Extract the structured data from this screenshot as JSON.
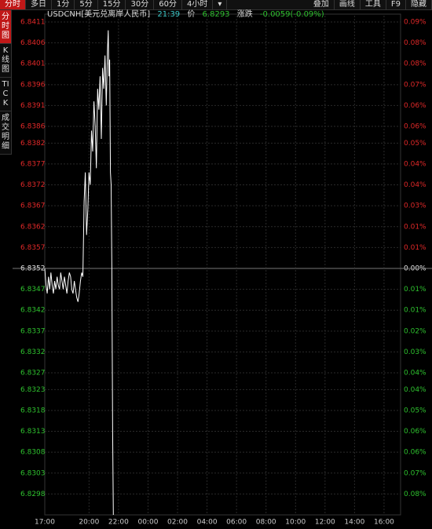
{
  "toolbar": {
    "left": [
      "分时",
      "多日",
      "1分",
      "5分",
      "15分",
      "30分",
      "60分",
      "4小时",
      "▾"
    ],
    "right": [
      "叠加",
      "画线",
      "工具",
      "F9",
      "隐藏"
    ]
  },
  "tabs": [
    "分时图",
    "K线图",
    "TICK",
    "成交明细"
  ],
  "header": {
    "symbol": "USDCNH[美元兑离岸人民币]",
    "time": "21:39",
    "price_label": "价",
    "price": 6.8293,
    "change_label": "涨跌",
    "change": "-0.0059(-0.09%)"
  },
  "chart_data": {
    "type": "line",
    "reference": 6.8352,
    "ylim": [
      6.8293,
      6.84125
    ],
    "yticks": [
      6.8411,
      6.8406,
      6.8401,
      6.8396,
      6.8391,
      6.8386,
      6.8382,
      6.8377,
      6.8372,
      6.8367,
      6.8362,
      6.8357,
      6.8352,
      6.8347,
      6.8342,
      6.8337,
      6.8332,
      6.8327,
      6.8323,
      6.8318,
      6.8313,
      6.8308,
      6.8303,
      6.8298
    ],
    "right_labels": [
      "0.09%",
      "0.08%",
      "0.08%",
      "0.07%",
      "0.06%",
      "0.06%",
      "0.05%",
      "0.04%",
      "0.04%",
      "0.03%",
      "0.01%",
      "0.01%",
      "0.00%",
      "0.01%",
      "0.01%",
      "0.02%",
      "0.03%",
      "0.04%",
      "0.04%",
      "0.05%",
      "0.06%",
      "0.06%",
      "0.07%",
      "0.08%"
    ],
    "xticks": [
      "17:00",
      "20:00",
      "22:00",
      "00:00",
      "02:00",
      "04:00",
      "06:00",
      "08:00",
      "10:00",
      "12:00",
      "14:00",
      "16:00"
    ],
    "grid": true,
    "color": "#ffffff",
    "x": [
      "17:00",
      "17:05",
      "17:10",
      "17:15",
      "17:20",
      "17:25",
      "17:30",
      "17:35",
      "17:40",
      "17:45",
      "17:50",
      "17:55",
      "18:00",
      "18:05",
      "18:10",
      "18:15",
      "18:20",
      "18:25",
      "18:30",
      "18:35",
      "18:40",
      "18:45",
      "18:50",
      "18:55",
      "19:00",
      "19:05",
      "19:10",
      "19:15",
      "19:20",
      "19:25",
      "19:30",
      "19:35",
      "19:40",
      "19:45",
      "19:50",
      "19:55",
      "20:00",
      "20:05",
      "20:10",
      "20:15",
      "20:20",
      "20:25",
      "20:30",
      "20:35",
      "20:40",
      "20:45",
      "20:50",
      "20:55",
      "21:00",
      "21:05",
      "21:10",
      "21:15",
      "21:18",
      "21:21",
      "21:24",
      "21:27",
      "21:30",
      "21:33",
      "21:36",
      "21:39"
    ],
    "values": [
      6.8352,
      6.8348,
      6.8346,
      6.835,
      6.8347,
      6.8351,
      6.8348,
      6.8346,
      6.8349,
      6.8347,
      6.835,
      6.8348,
      6.8347,
      6.8351,
      6.8349,
      6.8347,
      6.835,
      6.8348,
      6.8346,
      6.8349,
      6.8351,
      6.835,
      6.8347,
      6.8346,
      6.8349,
      6.8347,
      6.8345,
      6.8344,
      6.8346,
      6.8349,
      6.8351,
      6.835,
      6.8368,
      6.8375,
      6.836,
      6.8366,
      6.8375,
      6.8372,
      6.8385,
      6.838,
      6.8392,
      6.8386,
      6.8376,
      6.8395,
      6.839,
      6.8398,
      6.8383,
      6.84,
      6.8395,
      6.8403,
      6.8391,
      6.8404,
      6.8409,
      6.8398,
      6.8402,
      6.8375,
      6.8372,
      6.8352,
      6.8313,
      6.8293
    ]
  }
}
